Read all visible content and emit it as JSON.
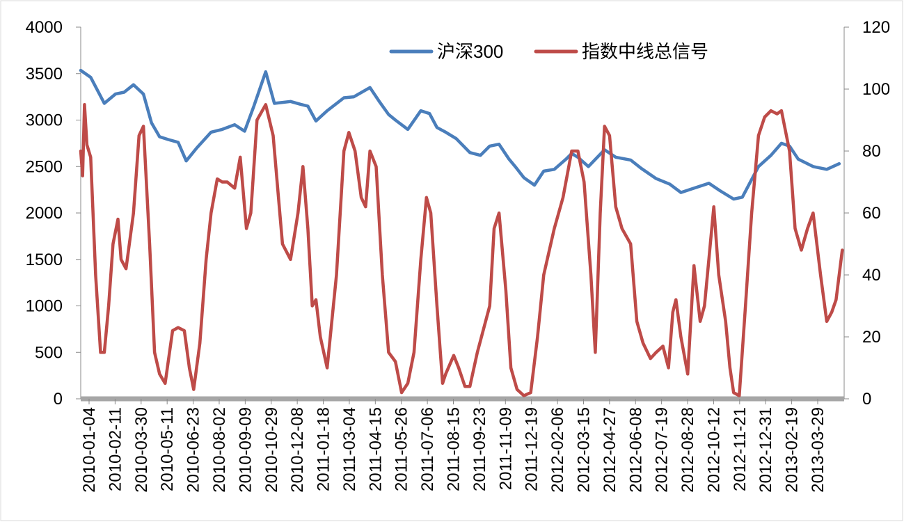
{
  "chart_data": {
    "type": "line",
    "x_dates": [
      "2010-01-04",
      "2010-02-11",
      "2010-03-30",
      "2010-05-11",
      "2010-06-23",
      "2010-08-02",
      "2010-09-09",
      "2010-10-29",
      "2010-12-08",
      "2011-01-18",
      "2011-03-04",
      "2011-04-15",
      "2011-05-26",
      "2011-07-06",
      "2011-08-15",
      "2011-09-23",
      "2011-11-09",
      "2011-12-19",
      "2012-02-06",
      "2012-03-15",
      "2012-04-27",
      "2012-06-08",
      "2012-07-19",
      "2012-08-28",
      "2012-10-12",
      "2012-11-21",
      "2012-12-31",
      "2013-02-19",
      "2013-03-29"
    ],
    "y_left": {
      "min": 0,
      "max": 4000,
      "step": 500,
      "ticks": [
        "0",
        "500",
        "1000",
        "1500",
        "2000",
        "2500",
        "3000",
        "3500",
        "4000"
      ]
    },
    "y_right": {
      "min": 0,
      "max": 120,
      "step": 20,
      "ticks": [
        "0",
        "20",
        "40",
        "60",
        "80",
        "100",
        "120"
      ]
    },
    "legend_position": "top-center",
    "grid": false,
    "series": [
      {
        "name": "沪深300",
        "axis": "left",
        "color": "#4a7ebb",
        "points": [
          [
            "2010-01-04",
            3535
          ],
          [
            "2010-01-20",
            3460
          ],
          [
            "2010-02-11",
            3180
          ],
          [
            "2010-03-01",
            3280
          ],
          [
            "2010-03-15",
            3300
          ],
          [
            "2010-03-30",
            3380
          ],
          [
            "2010-04-15",
            3280
          ],
          [
            "2010-04-28",
            2970
          ],
          [
            "2010-05-11",
            2820
          ],
          [
            "2010-05-25",
            2790
          ],
          [
            "2010-06-10",
            2760
          ],
          [
            "2010-06-23",
            2560
          ],
          [
            "2010-07-10",
            2700
          ],
          [
            "2010-08-02",
            2870
          ],
          [
            "2010-08-20",
            2900
          ],
          [
            "2010-09-09",
            2950
          ],
          [
            "2010-09-25",
            2880
          ],
          [
            "2010-10-10",
            3150
          ],
          [
            "2010-10-29",
            3520
          ],
          [
            "2010-11-12",
            3180
          ],
          [
            "2010-12-08",
            3200
          ],
          [
            "2010-12-24",
            3170
          ],
          [
            "2011-01-05",
            3150
          ],
          [
            "2011-01-18",
            2990
          ],
          [
            "2011-02-05",
            3100
          ],
          [
            "2011-03-04",
            3240
          ],
          [
            "2011-03-20",
            3250
          ],
          [
            "2011-04-15",
            3350
          ],
          [
            "2011-04-30",
            3200
          ],
          [
            "2011-05-15",
            3060
          ],
          [
            "2011-05-26",
            3000
          ],
          [
            "2011-06-15",
            2900
          ],
          [
            "2011-07-06",
            3100
          ],
          [
            "2011-07-20",
            3070
          ],
          [
            "2011-08-01",
            2920
          ],
          [
            "2011-08-15",
            2870
          ],
          [
            "2011-09-01",
            2800
          ],
          [
            "2011-09-23",
            2650
          ],
          [
            "2011-10-10",
            2620
          ],
          [
            "2011-10-25",
            2720
          ],
          [
            "2011-11-09",
            2740
          ],
          [
            "2011-11-25",
            2580
          ],
          [
            "2011-12-05",
            2500
          ],
          [
            "2011-12-19",
            2380
          ],
          [
            "2012-01-05",
            2300
          ],
          [
            "2012-01-20",
            2450
          ],
          [
            "2012-02-06",
            2470
          ],
          [
            "2012-02-25",
            2580
          ],
          [
            "2012-03-05",
            2640
          ],
          [
            "2012-03-15",
            2600
          ],
          [
            "2012-04-01",
            2500
          ],
          [
            "2012-04-27",
            2680
          ],
          [
            "2012-05-15",
            2600
          ],
          [
            "2012-06-08",
            2570
          ],
          [
            "2012-06-25",
            2480
          ],
          [
            "2012-07-19",
            2370
          ],
          [
            "2012-08-10",
            2310
          ],
          [
            "2012-08-28",
            2220
          ],
          [
            "2012-09-15",
            2260
          ],
          [
            "2012-10-12",
            2320
          ],
          [
            "2012-10-30",
            2240
          ],
          [
            "2012-11-21",
            2150
          ],
          [
            "2012-12-05",
            2170
          ],
          [
            "2012-12-31",
            2500
          ],
          [
            "2013-01-20",
            2620
          ],
          [
            "2013-02-06",
            2750
          ],
          [
            "2013-02-19",
            2720
          ],
          [
            "2013-03-05",
            2580
          ],
          [
            "2013-03-29",
            2500
          ],
          [
            "2013-04-20",
            2470
          ],
          [
            "2013-05-10",
            2530
          ]
        ]
      },
      {
        "name": "指数中线总信号",
        "axis": "right",
        "color": "#be4b48",
        "points": [
          [
            "2010-01-04",
            80
          ],
          [
            "2010-01-07",
            72
          ],
          [
            "2010-01-10",
            95
          ],
          [
            "2010-01-14",
            82
          ],
          [
            "2010-01-20",
            78
          ],
          [
            "2010-01-28",
            40
          ],
          [
            "2010-02-05",
            15
          ],
          [
            "2010-02-11",
            15
          ],
          [
            "2010-02-18",
            30
          ],
          [
            "2010-02-25",
            50
          ],
          [
            "2010-03-05",
            58
          ],
          [
            "2010-03-10",
            45
          ],
          [
            "2010-03-18",
            42
          ],
          [
            "2010-03-30",
            60
          ],
          [
            "2010-04-08",
            85
          ],
          [
            "2010-04-15",
            88
          ],
          [
            "2010-04-25",
            50
          ],
          [
            "2010-05-03",
            15
          ],
          [
            "2010-05-11",
            8
          ],
          [
            "2010-05-20",
            5
          ],
          [
            "2010-06-01",
            22
          ],
          [
            "2010-06-10",
            23
          ],
          [
            "2010-06-20",
            22
          ],
          [
            "2010-06-28",
            10
          ],
          [
            "2010-07-05",
            3
          ],
          [
            "2010-07-15",
            18
          ],
          [
            "2010-07-25",
            45
          ],
          [
            "2010-08-02",
            60
          ],
          [
            "2010-08-12",
            71
          ],
          [
            "2010-08-20",
            70
          ],
          [
            "2010-08-28",
            70
          ],
          [
            "2010-09-09",
            68
          ],
          [
            "2010-09-18",
            78
          ],
          [
            "2010-09-28",
            55
          ],
          [
            "2010-10-05",
            60
          ],
          [
            "2010-10-15",
            90
          ],
          [
            "2010-10-29",
            95
          ],
          [
            "2010-11-10",
            85
          ],
          [
            "2010-11-25",
            50
          ],
          [
            "2010-12-08",
            45
          ],
          [
            "2010-12-20",
            60
          ],
          [
            "2010-12-28",
            75
          ],
          [
            "2011-01-05",
            55
          ],
          [
            "2011-01-12",
            30
          ],
          [
            "2011-01-18",
            32
          ],
          [
            "2011-01-25",
            20
          ],
          [
            "2011-02-05",
            10
          ],
          [
            "2011-02-20",
            40
          ],
          [
            "2011-03-04",
            80
          ],
          [
            "2011-03-12",
            86
          ],
          [
            "2011-03-22",
            80
          ],
          [
            "2011-04-01",
            65
          ],
          [
            "2011-04-08",
            62
          ],
          [
            "2011-04-15",
            80
          ],
          [
            "2011-04-25",
            75
          ],
          [
            "2011-05-05",
            40
          ],
          [
            "2011-05-15",
            15
          ],
          [
            "2011-05-26",
            12
          ],
          [
            "2011-06-05",
            2
          ],
          [
            "2011-06-15",
            5
          ],
          [
            "2011-06-25",
            15
          ],
          [
            "2011-07-06",
            45
          ],
          [
            "2011-07-15",
            65
          ],
          [
            "2011-07-22",
            60
          ],
          [
            "2011-08-01",
            30
          ],
          [
            "2011-08-10",
            5
          ],
          [
            "2011-08-15",
            8
          ],
          [
            "2011-08-28",
            14
          ],
          [
            "2011-09-05",
            10
          ],
          [
            "2011-09-15",
            4
          ],
          [
            "2011-09-23",
            4
          ],
          [
            "2011-10-05",
            15
          ],
          [
            "2011-10-25",
            30
          ],
          [
            "2011-11-01",
            55
          ],
          [
            "2011-11-09",
            60
          ],
          [
            "2011-11-20",
            35
          ],
          [
            "2011-11-28",
            10
          ],
          [
            "2011-12-08",
            3
          ],
          [
            "2011-12-19",
            1
          ],
          [
            "2011-12-30",
            2
          ],
          [
            "2012-01-10",
            20
          ],
          [
            "2012-01-20",
            40
          ],
          [
            "2012-02-06",
            55
          ],
          [
            "2012-02-20",
            65
          ],
          [
            "2012-03-05",
            80
          ],
          [
            "2012-03-15",
            80
          ],
          [
            "2012-03-25",
            70
          ],
          [
            "2012-04-05",
            40
          ],
          [
            "2012-04-12",
            15
          ],
          [
            "2012-04-20",
            60
          ],
          [
            "2012-04-27",
            88
          ],
          [
            "2012-05-05",
            85
          ],
          [
            "2012-05-15",
            62
          ],
          [
            "2012-05-25",
            55
          ],
          [
            "2012-06-08",
            50
          ],
          [
            "2012-06-18",
            25
          ],
          [
            "2012-06-28",
            18
          ],
          [
            "2012-07-10",
            13
          ],
          [
            "2012-07-19",
            15
          ],
          [
            "2012-07-30",
            17
          ],
          [
            "2012-08-08",
            10
          ],
          [
            "2012-08-15",
            28
          ],
          [
            "2012-08-20",
            32
          ],
          [
            "2012-08-28",
            20
          ],
          [
            "2012-09-08",
            8
          ],
          [
            "2012-09-18",
            43
          ],
          [
            "2012-09-28",
            25
          ],
          [
            "2012-10-05",
            30
          ],
          [
            "2012-10-12",
            45
          ],
          [
            "2012-10-20",
            62
          ],
          [
            "2012-10-28",
            40
          ],
          [
            "2012-11-08",
            25
          ],
          [
            "2012-11-15",
            10
          ],
          [
            "2012-11-21",
            2
          ],
          [
            "2012-11-30",
            1
          ],
          [
            "2012-12-10",
            30
          ],
          [
            "2012-12-20",
            60
          ],
          [
            "2012-12-31",
            85
          ],
          [
            "2013-01-10",
            91
          ],
          [
            "2013-01-20",
            93
          ],
          [
            "2013-01-30",
            92
          ],
          [
            "2013-02-06",
            93
          ],
          [
            "2013-02-19",
            80
          ],
          [
            "2013-02-28",
            55
          ],
          [
            "2013-03-10",
            48
          ],
          [
            "2013-03-20",
            55
          ],
          [
            "2013-03-29",
            60
          ],
          [
            "2013-04-10",
            40
          ],
          [
            "2013-04-20",
            25
          ],
          [
            "2013-04-28",
            28
          ],
          [
            "2013-05-05",
            32
          ],
          [
            "2013-05-15",
            48
          ]
        ]
      }
    ]
  }
}
